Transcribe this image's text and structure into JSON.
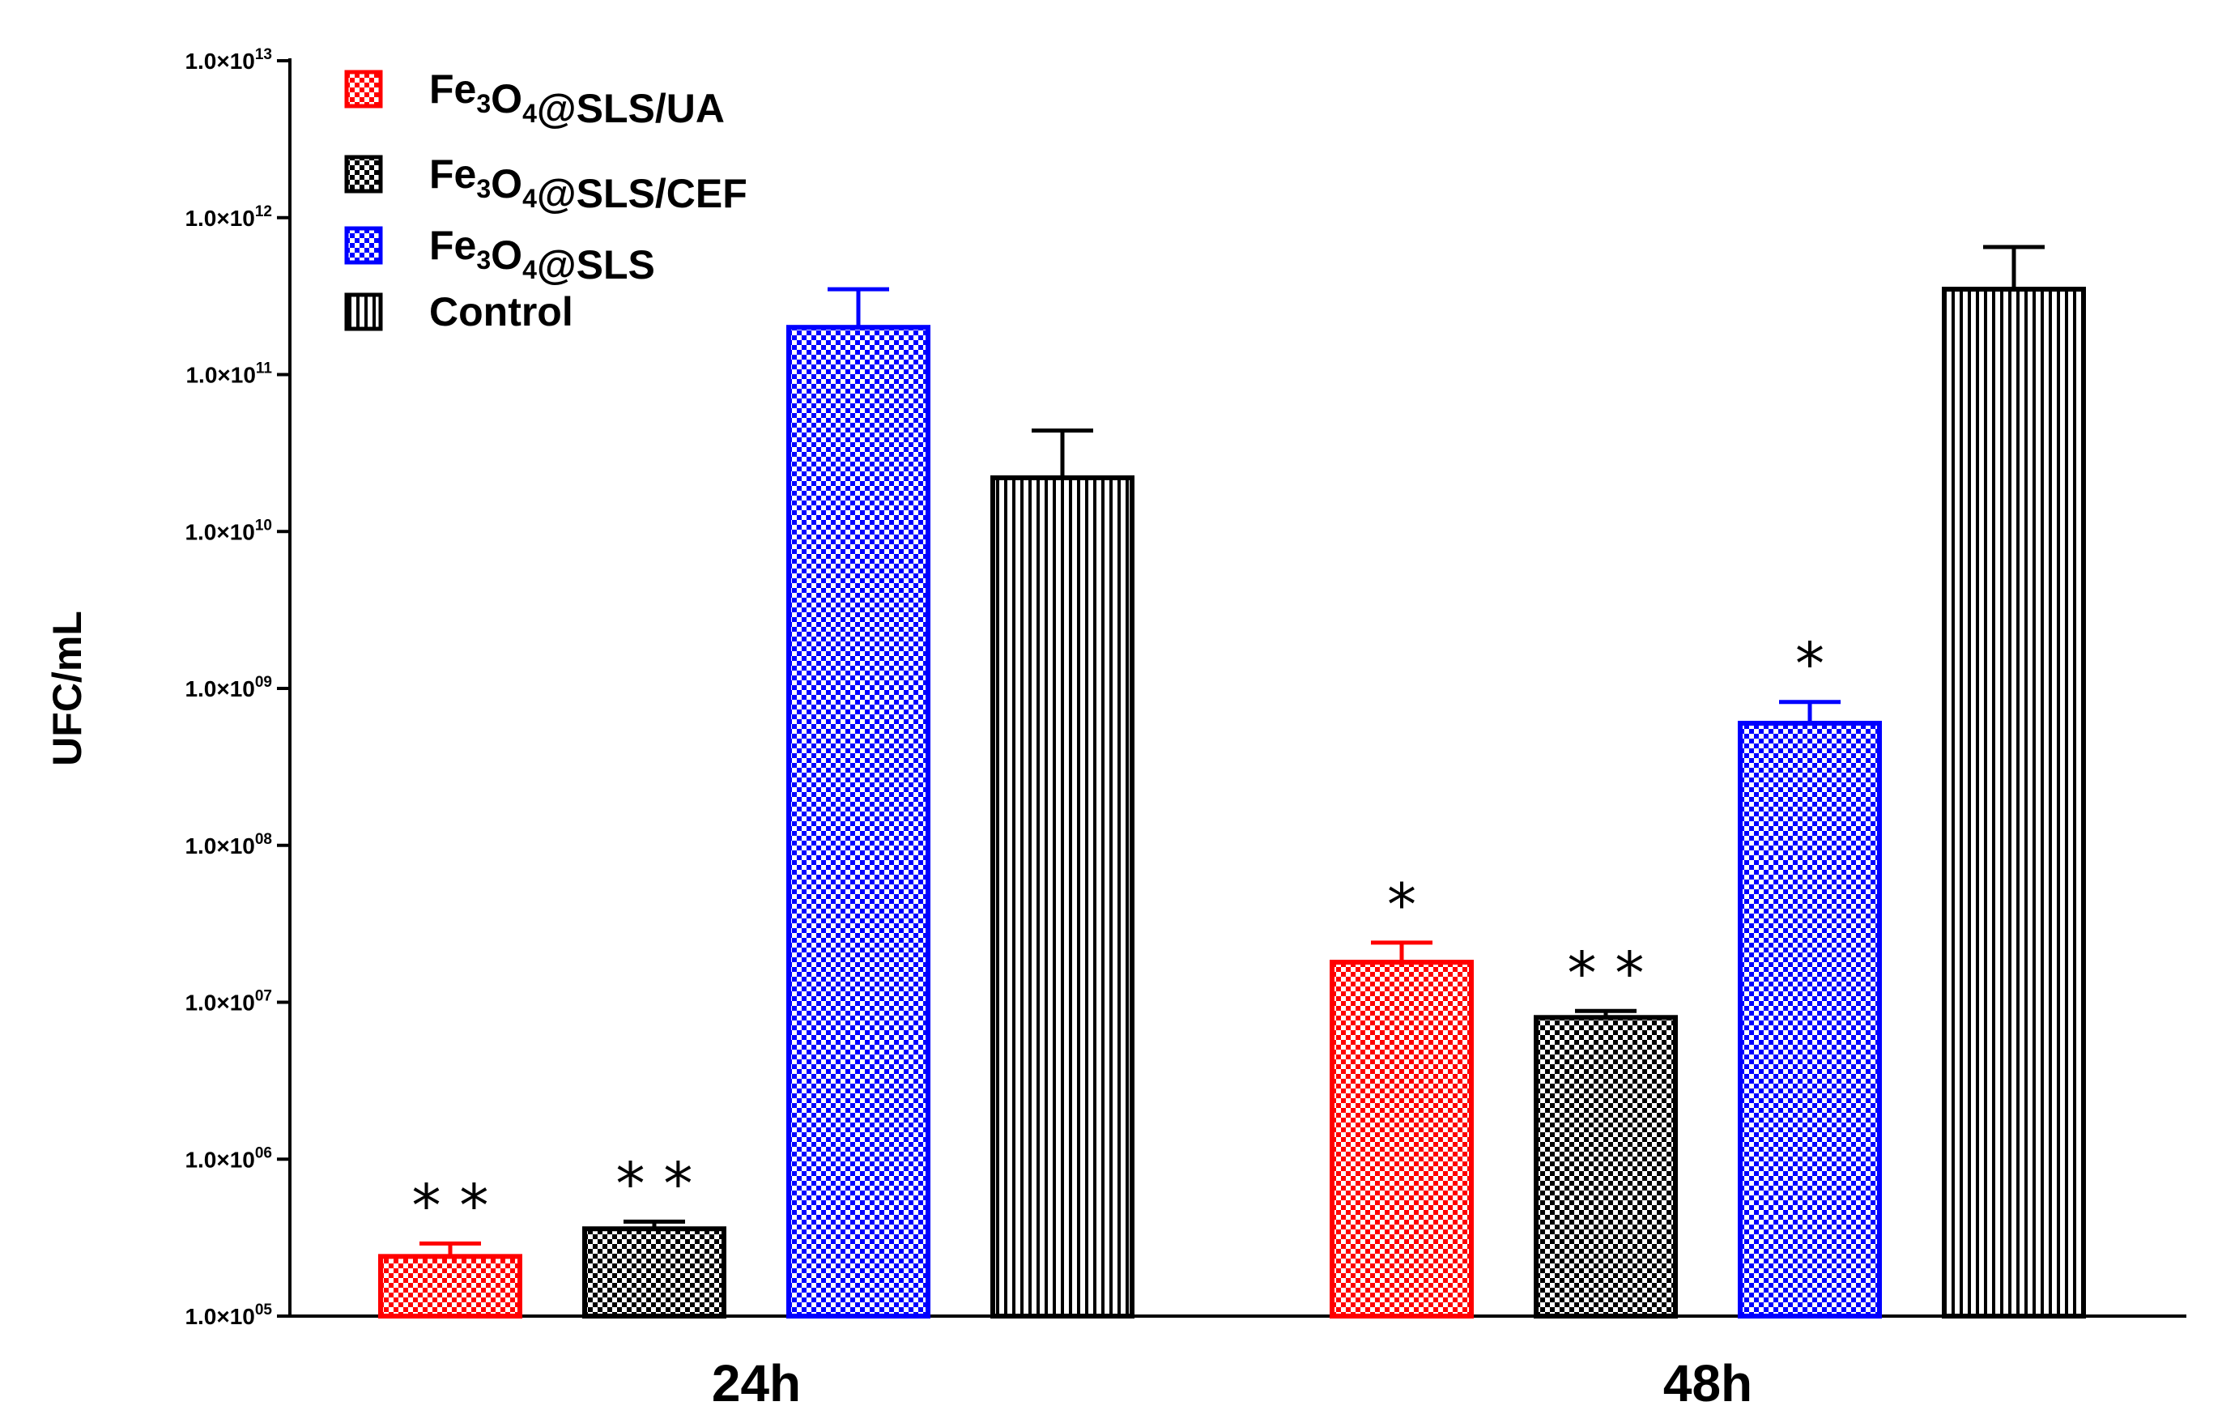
{
  "chart_data": {
    "type": "bar",
    "title": "",
    "xlabel": "",
    "ylabel": "UFC/mL",
    "yscale": "log",
    "ylim": [
      100000,
      10000000000000
    ],
    "categories": [
      "24h",
      "48h"
    ],
    "y_ticks": [
      {
        "base": "1.0×10",
        "exp": "05"
      },
      {
        "base": "1.0×10",
        "exp": "06"
      },
      {
        "base": "1.0×10",
        "exp": "07"
      },
      {
        "base": "1.0×10",
        "exp": "08"
      },
      {
        "base": "1.0×10",
        "exp": "09"
      },
      {
        "base": "1.0×10",
        "exp": "10"
      },
      {
        "base": "1.0×10",
        "exp": "11"
      },
      {
        "base": "1.0×10",
        "exp": "12"
      },
      {
        "base": "1.0×10",
        "exp": "13"
      }
    ],
    "series": [
      {
        "name": "Fe3O4@SLS/UA",
        "legend": [
          {
            "t": "Fe"
          },
          {
            "t": "3",
            "sub": true
          },
          {
            "t": "O"
          },
          {
            "t": "4",
            "sub": true
          },
          {
            "t": "@SLS/UA"
          }
        ],
        "color": "#ff0000",
        "pattern": "checker",
        "values": [
          240000,
          18000000
        ],
        "errors": [
          290000,
          24000000
        ],
        "significance": [
          "**",
          "*"
        ]
      },
      {
        "name": "Fe3O4@SLS/CEF",
        "legend": [
          {
            "t": "Fe"
          },
          {
            "t": "3",
            "sub": true
          },
          {
            "t": "O"
          },
          {
            "t": "4",
            "sub": true
          },
          {
            "t": "@SLS/CEF"
          }
        ],
        "color": "#000000",
        "pattern": "checker",
        "values": [
          360000,
          8000000
        ],
        "errors": [
          400000,
          8800000
        ],
        "significance": [
          "**",
          "**"
        ]
      },
      {
        "name": "Fe3O4@SLS",
        "legend": [
          {
            "t": "Fe"
          },
          {
            "t": "3",
            "sub": true
          },
          {
            "t": "O"
          },
          {
            "t": "4",
            "sub": true
          },
          {
            "t": "@SLS"
          }
        ],
        "color": "#0000ff",
        "pattern": "checker",
        "values": [
          200000000000,
          600000000
        ],
        "errors": [
          350000000000,
          820000000
        ],
        "significance": [
          "",
          "*"
        ]
      },
      {
        "name": "Control",
        "legend": [
          {
            "t": "Control"
          }
        ],
        "color": "#000000",
        "pattern": "vertical-lines",
        "values": [
          22000000000,
          350000000000
        ],
        "errors": [
          44000000000,
          650000000000
        ],
        "significance": [
          "",
          ""
        ]
      }
    ],
    "legend_position": "top-left",
    "grid": false
  }
}
